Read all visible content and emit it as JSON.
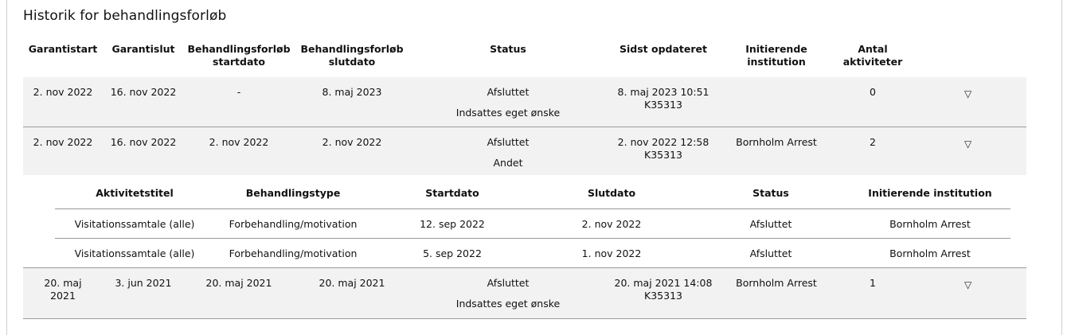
{
  "title": "Historik for behandlingsforløb",
  "columns": {
    "garantistart": "Garantistart",
    "garantislut": "Garantislut",
    "bf_start_l1": "Behandlingsforløb",
    "bf_start_l2": "startdato",
    "bf_slut_l1": "Behandlingsforløb",
    "bf_slut_l2": "slutdato",
    "status": "Status",
    "sidst_opdateret": "Sidst opdateret",
    "init_l1": "Initierende",
    "init_l2": "institution",
    "antal_l1": "Antal",
    "antal_l2": "aktiviteter"
  },
  "rows": [
    {
      "garantistart": "2. nov 2022",
      "garantislut": "16. nov 2022",
      "bf_start": "-",
      "bf_slut": "8. maj 2023",
      "status": "Afsluttet",
      "status_reason": "Indsattes eget ønske",
      "updated": "8. maj 2023 10:51",
      "updated_by": "K35313",
      "institution": "",
      "count": "0",
      "expand_icon": "▽"
    },
    {
      "garantistart": "2. nov 2022",
      "garantislut": "16. nov 2022",
      "bf_start": "2. nov 2022",
      "bf_slut": "2. nov 2022",
      "status": "Afsluttet",
      "status_reason": "Andet",
      "updated": "2. nov 2022 12:58",
      "updated_by": "K35313",
      "institution": "Bornholm Arrest",
      "count": "2",
      "expand_icon": "▽"
    },
    {
      "garantistart_l1": "20. maj",
      "garantistart_l2": "2021",
      "garantislut": "3. jun 2021",
      "bf_start": "20. maj 2021",
      "bf_slut": "20. maj 2021",
      "status": "Afsluttet",
      "status_reason": "Indsattes eget ønske",
      "updated": "20. maj 2021 14:08",
      "updated_by": "K35313",
      "institution": "Bornholm Arrest",
      "count": "1",
      "expand_icon": "▽"
    }
  ],
  "activities": {
    "columns": {
      "title": "Aktivitetstitel",
      "type": "Behandlingstype",
      "start": "Startdato",
      "end": "Slutdato",
      "status": "Status",
      "institution": "Initierende institution"
    },
    "items": [
      {
        "title": "Visitationssamtale (alle)",
        "type": "Forbehandling/motivation",
        "start": "12. sep 2022",
        "end": "2. nov 2022",
        "status": "Afsluttet",
        "institution": "Bornholm Arrest"
      },
      {
        "title": "Visitationssamtale (alle)",
        "type": "Forbehandling/motivation",
        "start": "5. sep 2022",
        "end": "1. nov 2022",
        "status": "Afsluttet",
        "institution": "Bornholm Arrest"
      }
    ]
  }
}
